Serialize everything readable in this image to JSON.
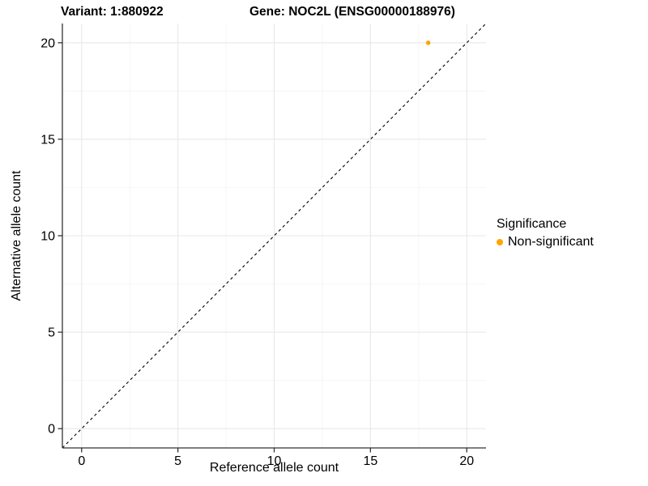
{
  "header": {
    "variant_title": "Variant: 1:880922",
    "gene_title": "Gene: NOC2L (ENSG00000188976)"
  },
  "chart_data": {
    "type": "scatter",
    "xlabel": "Reference allele count",
    "ylabel": "Alternative allele count",
    "xlim": [
      -1,
      21
    ],
    "ylim": [
      -1,
      21
    ],
    "xticks": [
      0,
      5,
      10,
      15,
      20
    ],
    "yticks": [
      0,
      5,
      10,
      15,
      20
    ],
    "xminor": [
      2.5,
      7.5,
      12.5,
      17.5
    ],
    "yminor": [
      2.5,
      7.5,
      12.5,
      17.5
    ],
    "grid": {
      "major_color": "#E8E8E8",
      "minor_color": "#F4F4F4"
    },
    "axis_color": "#333333",
    "tick_label_color": "#000000",
    "identity_line": {
      "style": "dashed",
      "color": "#000000",
      "from": [
        -1,
        -1
      ],
      "to": [
        21,
        21
      ]
    },
    "series": [
      {
        "name": "Non-significant",
        "color": "#FFA500",
        "points": [
          {
            "x": 18,
            "y": 20
          }
        ]
      }
    ],
    "legend": {
      "title": "Significance",
      "position": "right",
      "entries": [
        {
          "label": "Non-significant",
          "color": "#FFA500"
        }
      ]
    }
  }
}
